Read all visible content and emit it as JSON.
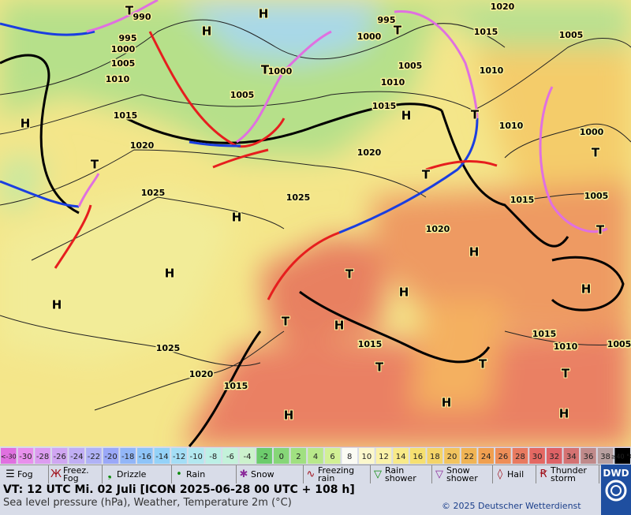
{
  "isobar_labels": [
    990,
    995,
    1000,
    1005,
    1010,
    1015,
    1020,
    1025,
    1025,
    1020,
    1015,
    1005,
    1000,
    1000,
    995,
    1005,
    1010,
    1015,
    1020,
    1025,
    1020,
    1015,
    1015,
    1010,
    1010,
    1015,
    1020,
    1005,
    1000,
    1005,
    1015,
    1010,
    1005
  ],
  "pressure_centers": [
    "T",
    "H",
    "H",
    "T",
    "T",
    "H",
    "T",
    "H",
    "T",
    "T",
    "T",
    "T",
    "H",
    "H",
    "H",
    "T",
    "H",
    "H",
    "H",
    "T",
    "H",
    "T",
    "T",
    "T",
    "H",
    "H",
    "H"
  ],
  "temperature_scale": {
    "below": "<-30",
    "steps": [
      -30,
      -28,
      -26,
      -24,
      -22,
      -20,
      -18,
      -16,
      -14,
      -12,
      -10,
      -8,
      -6,
      -4,
      -2,
      0,
      2,
      4,
      6,
      8,
      10,
      12,
      14,
      16,
      18,
      20,
      22,
      24,
      26,
      28,
      30,
      32,
      34,
      36,
      38
    ],
    "above": "≥40 °C",
    "colors": [
      "#e070e0",
      "#e890ec",
      "#dc9cf0",
      "#d0a6f2",
      "#c0aef4",
      "#b0b2f6",
      "#9aa8f8",
      "#92b6f8",
      "#8ec4f8",
      "#94d2f8",
      "#a4def6",
      "#b2e8f0",
      "#bcf0e6",
      "#c4f2da",
      "#ccf2cc",
      "#6ccc6c",
      "#86d678",
      "#a0e080",
      "#b8e88a",
      "#d2f094",
      "#fbfbf4",
      "#fcf8cc",
      "#fbf2a8",
      "#f8ea88",
      "#f6e070",
      "#f4d468",
      "#f2c45e",
      "#f0b454",
      "#f0a050",
      "#ee8e58",
      "#e87a60",
      "#e46862",
      "#de6266",
      "#d47272",
      "#c08a8a",
      "#b8a0a0"
    ]
  },
  "legend": [
    "Fog",
    "Freez. Fog",
    "Drizzle",
    "Rain",
    "Snow",
    "Freezing rain",
    "Rain shower",
    "Snow shower",
    "Hail",
    "Thunder storm"
  ],
  "footer": {
    "valid_time": "VT: 12 UTC Mi.  02 Juli [ICON 2025-06-28  00 UTC + 108 h]",
    "description": "Sea level pressure (hPa), Weather, Temperature 2m (°C)",
    "copyright": "© 2025 Deutscher Wetterdienst",
    "logo": "DWD"
  }
}
